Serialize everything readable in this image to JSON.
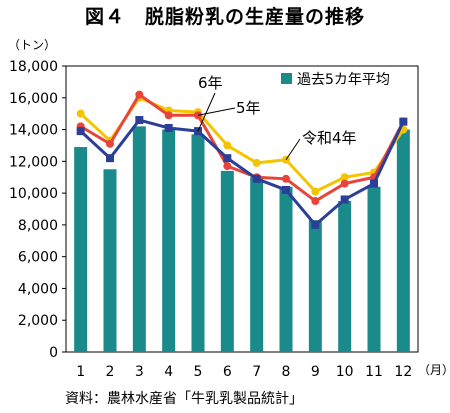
{
  "chart_data": {
    "type": "bar",
    "title": "図４　脱脂粉乳の生産量の推移",
    "ylabel": "（トン）",
    "xunit": "（月）",
    "ylim": [
      0,
      18000
    ],
    "yticks": [
      0,
      2000,
      4000,
      6000,
      8000,
      10000,
      12000,
      14000,
      16000,
      18000
    ],
    "ytick_labels": [
      "0",
      "2,000",
      "4,000",
      "6,000",
      "8,000",
      "10,000",
      "12,000",
      "14,000",
      "16,000",
      "18,000"
    ],
    "categories": [
      "1",
      "2",
      "3",
      "4",
      "5",
      "6",
      "7",
      "8",
      "9",
      "10",
      "11",
      "12"
    ],
    "grid": false,
    "legend_position": "top-right",
    "series": [
      {
        "name": "過去5カ年平均",
        "kind": "bar",
        "color": "#1a8a8a",
        "values": [
          12900,
          11500,
          14200,
          14000,
          13700,
          11400,
          11000,
          10400,
          8300,
          9500,
          10400,
          14000
        ]
      },
      {
        "name": "令和4年",
        "kind": "line",
        "color": "#f5c400",
        "marker": "circle",
        "values": [
          15000,
          13300,
          16000,
          15200,
          15100,
          13000,
          11900,
          12100,
          10100,
          11000,
          11300,
          14000
        ]
      },
      {
        "name": "5年",
        "kind": "line",
        "color": "#e8453a",
        "marker": "circle",
        "values": [
          14200,
          13100,
          16200,
          14900,
          14900,
          11700,
          11000,
          10900,
          9500,
          10600,
          11000,
          14500
        ]
      },
      {
        "name": "6年",
        "kind": "line",
        "color": "#2b3f96",
        "marker": "square",
        "values": [
          13900,
          12200,
          14600,
          14100,
          13900,
          12200,
          10900,
          10200,
          8000,
          9600,
          10600,
          14500
        ]
      }
    ]
  },
  "source_note": "資料：農林水産省「牛乳乳製品統計」"
}
